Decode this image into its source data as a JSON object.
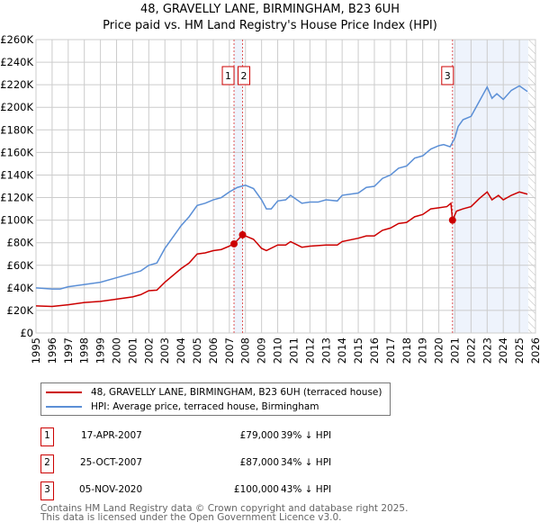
{
  "chart_data": {
    "type": "line",
    "title": "48, GRAVELLY LANE, BIRMINGHAM, B23 6UH",
    "subtitle": "Price paid vs. HM Land Registry's House Price Index (HPI)",
    "ylim": [
      0,
      260000
    ],
    "xlim": [
      1995,
      2026
    ],
    "yticks": [
      0,
      20000,
      40000,
      60000,
      80000,
      100000,
      120000,
      140000,
      160000,
      180000,
      200000,
      220000,
      240000,
      260000
    ],
    "ytick_labels": [
      "£0",
      "£20K",
      "£40K",
      "£60K",
      "£80K",
      "£100K",
      "£120K",
      "£140K",
      "£160K",
      "£180K",
      "£200K",
      "£220K",
      "£240K",
      "£260K"
    ],
    "xticks": [
      "1995",
      "1996",
      "1997",
      "1998",
      "1999",
      "2000",
      "2001",
      "2002",
      "2003",
      "2004",
      "2005",
      "2006",
      "2007",
      "2008",
      "2009",
      "2010",
      "2011",
      "2012",
      "2013",
      "2014",
      "2015",
      "2016",
      "2017",
      "2018",
      "2019",
      "2020",
      "2021",
      "2022",
      "2023",
      "2024",
      "2025",
      "2026"
    ],
    "grid": true,
    "series": [
      {
        "name": "48, GRAVELLY LANE, BIRMINGHAM, B23 6UH (terraced house)",
        "color": "#cc0000",
        "x": [
          1995,
          1996,
          1997,
          1998,
          1999,
          2000,
          2001,
          2001.5,
          2002,
          2002.5,
          2003,
          2004,
          2004.5,
          2005,
          2005.5,
          2006,
          2006.5,
          2007,
          2007.29,
          2007.82,
          2008,
          2008.5,
          2009,
          2009.3,
          2010,
          2010.5,
          2010.8,
          2011.5,
          2012,
          2013,
          2013.7,
          2014,
          2015,
          2015.5,
          2016,
          2016.5,
          2017,
          2017.5,
          2018,
          2018.5,
          2019,
          2019.5,
          2020,
          2020.5,
          2020.75,
          2020.85,
          2021.1,
          2021.5,
          2022,
          2022.5,
          2023,
          2023.3,
          2023.7,
          2024,
          2024.5,
          2025,
          2025.5
        ],
        "y": [
          24,
          23.5,
          25,
          27,
          28,
          30,
          32,
          34,
          37.5,
          38,
          45,
          57,
          62,
          70,
          71,
          73,
          74,
          77,
          79,
          87,
          86,
          83,
          75,
          73,
          78,
          78,
          81,
          76,
          77,
          78,
          78,
          81,
          84,
          86,
          86,
          91,
          93,
          97,
          98,
          103,
          105,
          110,
          111,
          112,
          115,
          100,
          108,
          110,
          112,
          119,
          125,
          118,
          122,
          118,
          122,
          125,
          123
        ]
      },
      {
        "name": "HPI: Average price, terraced house, Birmingham",
        "color": "#5b8fd6",
        "x": [
          1995,
          1996,
          1996.5,
          1997,
          1998,
          1998.5,
          1999,
          2000,
          2001,
          2001.5,
          2002,
          2002.5,
          2003,
          2003.5,
          2004,
          2004.5,
          2005,
          2005.5,
          2006,
          2006.5,
          2007,
          2007.5,
          2008,
          2008.5,
          2009,
          2009.3,
          2009.6,
          2010,
          2010.5,
          2010.8,
          2011.5,
          2012,
          2012.5,
          2013,
          2013.7,
          2014,
          2015,
          2015.5,
          2016,
          2016.5,
          2017,
          2017.5,
          2018,
          2018.5,
          2019,
          2019.5,
          2020,
          2020.3,
          2020.7,
          2021,
          2021.2,
          2021.5,
          2022,
          2022.5,
          2023,
          2023.3,
          2023.6,
          2024,
          2024.5,
          2025,
          2025.5
        ],
        "y": [
          40,
          39,
          39,
          41,
          43,
          44,
          45,
          49,
          53,
          55,
          60,
          62,
          75,
          85,
          95,
          103,
          113,
          115,
          118,
          120,
          125,
          129,
          131,
          128,
          118,
          110,
          110,
          117,
          118,
          122,
          115,
          116,
          116,
          118,
          117,
          122,
          124,
          129,
          130,
          137,
          140,
          146,
          148,
          155,
          157,
          163,
          166,
          167,
          165,
          173,
          183,
          189,
          192,
          205,
          218,
          208,
          212,
          207,
          215,
          219,
          214
        ]
      }
    ],
    "y_units": "thousands GBP",
    "sales": [
      {
        "num": "1",
        "date": "17-APR-2007",
        "price": "£79,000",
        "hpi": "39% ↓ HPI",
        "x": 2007.29,
        "y": 79
      },
      {
        "num": "2",
        "date": "25-OCT-2007",
        "price": "£87,000",
        "hpi": "34% ↓ HPI",
        "x": 2007.82,
        "y": 87
      },
      {
        "num": "3",
        "date": "05-NOV-2020",
        "price": "£100,000",
        "hpi": "43% ↓ HPI",
        "x": 2020.85,
        "y": 100
      }
    ],
    "footer": [
      "Contains HM Land Registry data © Crown copyright and database right 2025.",
      "This data is licensed under the Open Government Licence v3.0."
    ]
  }
}
